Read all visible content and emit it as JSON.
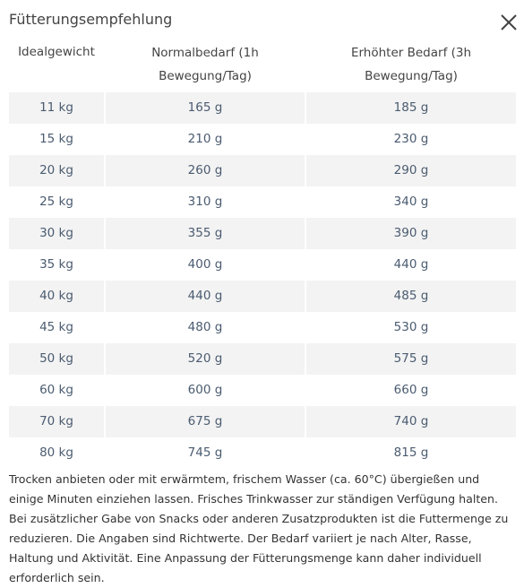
{
  "header": {
    "title": "Fütterungsempfehlung"
  },
  "table": {
    "columns": [
      "Idealgewicht",
      "Normalbedarf (1h Bewegung/Tag)",
      "Erhöhter Bedarf (3h Bewegung/Tag)"
    ],
    "rows": [
      [
        "11 kg",
        "165 g",
        "185 g"
      ],
      [
        "15 kg",
        "210 g",
        "230 g"
      ],
      [
        "20 kg",
        "260 g",
        "290 g"
      ],
      [
        "25 kg",
        "310 g",
        "340 g"
      ],
      [
        "30 kg",
        "355 g",
        "390 g"
      ],
      [
        "35 kg",
        "400 g",
        "440 g"
      ],
      [
        "40 kg",
        "440 g",
        "485 g"
      ],
      [
        "45 kg",
        "480 g",
        "530 g"
      ],
      [
        "50 kg",
        "520 g",
        "575 g"
      ],
      [
        "60 kg",
        "600 g",
        "660 g"
      ],
      [
        "70 kg",
        "675 g",
        "740 g"
      ],
      [
        "80 kg",
        "745 g",
        "815 g"
      ]
    ]
  },
  "note": "Trocken anbieten oder mit erwärmtem, frischem Wasser (ca. 60°C) übergießen und einige Minuten einziehen lassen. Frisches Trinkwasser zur ständigen Verfügung halten. Bei zusätzlicher Gabe von Snacks oder anderen Zusatzprodukten ist die Futtermenge zu reduzieren. Die Angaben sind Richtwerte. Der Bedarf variiert je nach Alter, Rasse, Haltung und Aktivität. Eine Anpassung der Fütterungsmenge kann daher individuell erforderlich sein."
}
